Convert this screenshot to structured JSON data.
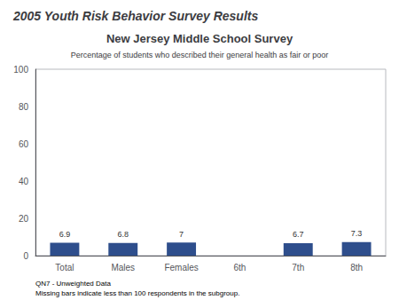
{
  "chart_data": {
    "type": "bar",
    "title": "New Jersey Middle School Survey",
    "subtitle": "Percentage of students who described their general health as fair or poor",
    "annotations": [
      "2005 Youth Risk Behavior Survey Results",
      "QN7 - Unweighted Data",
      "Missing bars indicate less than 100 respondents in the subgroup."
    ],
    "categories": [
      "Total",
      "Males",
      "Females",
      "6th",
      "7th",
      "8th"
    ],
    "values": [
      6.9,
      6.8,
      7.0,
      null,
      6.7,
      7.3
    ],
    "color": "#2e4e8c",
    "ylim": [
      0,
      100
    ],
    "yticks": [
      0,
      20,
      40,
      60,
      80,
      100
    ],
    "grid": false,
    "data_labels": true
  }
}
